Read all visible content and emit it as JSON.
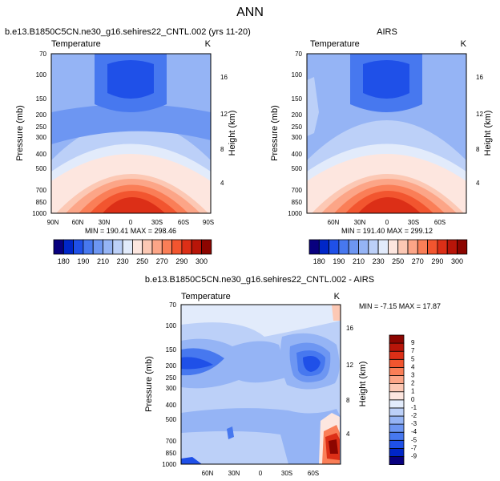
{
  "figure_title": "ANN",
  "panels": {
    "model": {
      "title": "b.e13.B1850C5CN.ne30_g16.sehires22_CNTL.002 (yrs 11-20)",
      "left_label": "Temperature",
      "right_label": "K",
      "minmax": "MIN = 190.41   MAX = 298.46"
    },
    "obs": {
      "title": "AIRS",
      "left_label": "Temperature",
      "right_label": "K",
      "minmax": "MIN = 191.40   MAX = 299.12"
    },
    "diff": {
      "title": "b.e13.B1850C5CN.ne30_g16.sehires22_CNTL.002 - AIRS",
      "left_label": "Temperature",
      "right_label": "K",
      "minmax": "MIN = -7.15   MAX = 17.87"
    }
  },
  "axes": {
    "ylabel": "Pressure (mb)",
    "ylabel_right": "Height (km)"
  },
  "colorbars": {
    "absolute": {
      "colors": [
        "#08007f",
        "#0026c8",
        "#1f50e8",
        "#4778ef",
        "#6d96f2",
        "#95b4f5",
        "#bcd0f8",
        "#e2ebfb",
        "#fde6df",
        "#fcc8b4",
        "#fca587",
        "#fa7e57",
        "#f2552f",
        "#dc2f17",
        "#b81509",
        "#8c0500"
      ],
      "labels": [
        "180",
        "190",
        "210",
        "230",
        "250",
        "270",
        "290",
        "300"
      ]
    },
    "difference": {
      "colors": [
        "#08007f",
        "#0026c8",
        "#1f50e8",
        "#4778ef",
        "#6d96f2",
        "#95b4f5",
        "#bcd0f8",
        "#e2ebfb",
        "#fde6df",
        "#fcc8b4",
        "#fca587",
        "#fa7e57",
        "#f2552f",
        "#dc2f17",
        "#b81509",
        "#8c0500"
      ],
      "labels": [
        "-9",
        "-7",
        "-5",
        "-4",
        "-3",
        "-2",
        "-1",
        "0",
        "1",
        "2",
        "3",
        "4",
        "5",
        "7",
        "9"
      ]
    }
  },
  "chart_data": [
    {
      "type": "heatmap",
      "title": "b.e13.B1850C5CN.ne30_g16.sehires22_CNTL.002 (yrs 11-20)",
      "field": "Temperature",
      "units": "K",
      "xlabel": "",
      "ylabel": "Pressure (mb)",
      "ylabel_right": "Height (km)",
      "x_ticks": [
        "90N",
        "60N",
        "30N",
        "0",
        "30S",
        "60S",
        "90S"
      ],
      "x_values": [
        90,
        60,
        30,
        0,
        -30,
        -60,
        -90
      ],
      "xlim": [
        90,
        -90
      ],
      "y_ticks": [
        70,
        100,
        150,
        200,
        250,
        300,
        400,
        500,
        700,
        850,
        1000
      ],
      "ylim": [
        70,
        1000
      ],
      "y_right_ticks": [
        4,
        8,
        12,
        16
      ],
      "min": 190.41,
      "max": 298.46
    },
    {
      "type": "heatmap",
      "title": "AIRS",
      "field": "Temperature",
      "units": "K",
      "xlabel": "",
      "ylabel": "Pressure (mb)",
      "ylabel_right": "Height (km)",
      "x_ticks": [
        "60N",
        "30N",
        "0",
        "30S",
        "60S"
      ],
      "x_values": [
        60,
        30,
        0,
        -30,
        -60
      ],
      "xlim": [
        90,
        -90
      ],
      "y_ticks": [
        70,
        100,
        150,
        200,
        250,
        300,
        400,
        500,
        700,
        850,
        1000
      ],
      "ylim": [
        70,
        1000
      ],
      "y_right_ticks": [
        4,
        8,
        12,
        16
      ],
      "min": 191.4,
      "max": 299.12
    },
    {
      "type": "heatmap",
      "title": "b.e13.B1850C5CN.ne30_g16.sehires22_CNTL.002 - AIRS",
      "field": "Temperature",
      "units": "K",
      "xlabel": "",
      "ylabel": "Pressure (mb)",
      "ylabel_right": "Height (km)",
      "x_ticks": [
        "60N",
        "30N",
        "0",
        "30S",
        "60S"
      ],
      "x_values": [
        60,
        30,
        0,
        -30,
        -60
      ],
      "xlim": [
        90,
        -90
      ],
      "y_ticks": [
        70,
        100,
        150,
        200,
        250,
        300,
        400,
        500,
        700,
        850,
        1000
      ],
      "ylim": [
        70,
        1000
      ],
      "y_right_ticks": [
        4,
        8,
        12,
        16
      ],
      "min": -7.15,
      "max": 17.87
    }
  ]
}
